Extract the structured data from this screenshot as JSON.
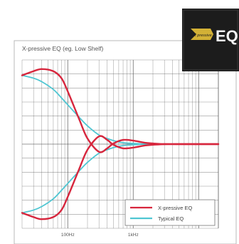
{
  "chart_data": {
    "type": "line",
    "title": "X-pressive EQ (eg. Low Shelf)",
    "xscale": "log",
    "xlim": [
      20,
      20000
    ],
    "ylim": [
      -12,
      12
    ],
    "xtick_labels": [
      {
        "value": 100,
        "label": "100Hz"
      },
      {
        "value": 1000,
        "label": "1kHz"
      }
    ],
    "grid": true,
    "legend_position": "bottom-right",
    "series": [
      {
        "name": "X-pressive EQ",
        "color": "#d7263d",
        "variant": "boost",
        "x": [
          20,
          30,
          40,
          60,
          80,
          100,
          150,
          200,
          300,
          400,
          500,
          700,
          1000,
          1500,
          2000,
          3000,
          5000,
          20000
        ],
        "y": [
          9.8,
          10.4,
          10.7,
          10.4,
          9.4,
          7.5,
          3.5,
          0.8,
          -1.1,
          -0.6,
          0.1,
          0.6,
          0.5,
          0.2,
          0.1,
          0.0,
          0.0,
          0.0
        ]
      },
      {
        "name": "X-pressive EQ",
        "color": "#d7263d",
        "variant": "cut",
        "x": [
          20,
          30,
          40,
          60,
          80,
          100,
          150,
          200,
          300,
          400,
          500,
          700,
          1000,
          1500,
          2000,
          3000,
          5000,
          20000
        ],
        "y": [
          -9.8,
          -10.4,
          -10.7,
          -10.4,
          -9.4,
          -7.5,
          -3.5,
          -0.8,
          1.1,
          0.6,
          -0.1,
          -0.6,
          -0.5,
          -0.2,
          -0.1,
          0.0,
          0.0,
          0.0
        ]
      },
      {
        "name": "Typical EQ",
        "color": "#4fc6d2",
        "variant": "boost",
        "x": [
          20,
          30,
          40,
          60,
          80,
          100,
          150,
          200,
          300,
          400,
          500,
          700,
          1000,
          1500,
          2000,
          3000,
          5000,
          20000
        ],
        "y": [
          9.8,
          9.4,
          8.9,
          7.8,
          6.6,
          5.6,
          3.8,
          2.6,
          1.3,
          0.8,
          0.5,
          0.2,
          0.1,
          0.0,
          0.0,
          0.0,
          0.0,
          0.0
        ]
      },
      {
        "name": "Typical EQ",
        "color": "#4fc6d2",
        "variant": "cut",
        "x": [
          20,
          30,
          40,
          60,
          80,
          100,
          150,
          200,
          300,
          400,
          500,
          700,
          1000,
          1500,
          2000,
          3000,
          5000,
          20000
        ],
        "y": [
          -9.8,
          -9.4,
          -8.9,
          -7.8,
          -6.6,
          -5.6,
          -3.8,
          -2.6,
          -1.3,
          -0.8,
          -0.5,
          -0.2,
          -0.1,
          0.0,
          0.0,
          0.0,
          0.0,
          0.0
        ]
      }
    ],
    "legend": [
      {
        "label": "X-pressive EQ",
        "color": "#d7263d"
      },
      {
        "label": "Typical EQ",
        "color": "#4fc6d2"
      }
    ]
  },
  "logo": {
    "text": "EQ",
    "badge_text": "X pressive",
    "background": "#1c1c1c",
    "accent": "#e8c23a"
  },
  "colors": {
    "panel_border": "#b8b8b8",
    "grid_line": "#555555",
    "text": "#555555"
  }
}
